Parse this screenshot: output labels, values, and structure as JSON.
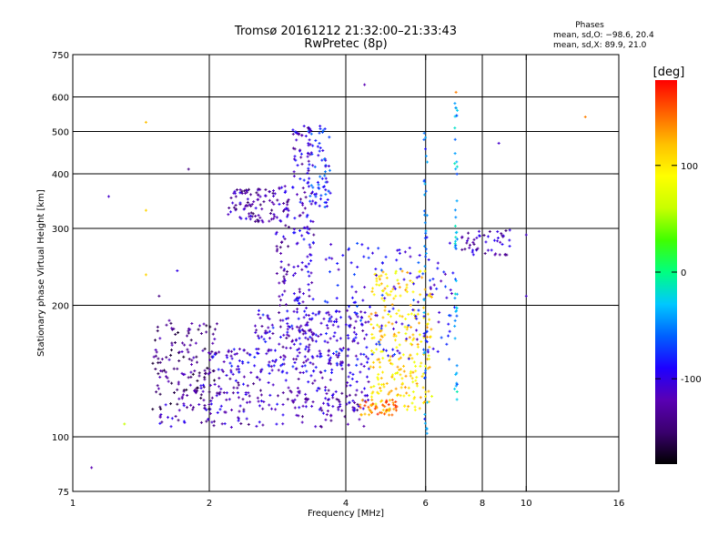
{
  "chart_data": {
    "type": "scatter",
    "title": "Tromsø 20161212 21:32:00–21:33:43",
    "subtitle": "RwPretec (8p)",
    "xlabel": "Frequency [MHz]",
    "ylabel": "Stationary phase Virtual Height [km]",
    "x_scale": "log",
    "y_scale": "log",
    "xlim": [
      1,
      16
    ],
    "ylim": [
      75,
      750
    ],
    "x_ticks": [
      1,
      2,
      4,
      6,
      8,
      10,
      16
    ],
    "y_ticks": [
      75,
      100,
      200,
      300,
      400,
      500,
      600,
      750
    ],
    "x_gridlines": [
      2,
      4,
      6,
      8,
      10
    ],
    "y_gridlines": [
      100,
      200,
      300,
      400,
      500,
      600
    ],
    "grid": true,
    "phases_box": {
      "title": "Phases",
      "line_o": "mean, sd,O: −98.6, 20.4",
      "line_x": "mean, sd,X:  89.9, 21.0"
    },
    "colorbar": {
      "label": "[deg]",
      "range": [
        -180,
        180
      ],
      "ticks": [
        100,
        0,
        -100
      ],
      "colormap": [
        "#000000",
        "#3a006e",
        "#5a00b4",
        "#1e00ff",
        "#0060ff",
        "#00c8ff",
        "#00ff80",
        "#40ff00",
        "#c8ff00",
        "#ffff00",
        "#ffc000",
        "#ff6000",
        "#ff0000"
      ]
    },
    "clusters": [
      {
        "name": "E region trace",
        "fmin": 1.55,
        "fmax": 4.5,
        "h0": 105,
        "h1": 130,
        "phase": -120,
        "n": 140
      },
      {
        "name": "E region trace upper",
        "fmin": 1.7,
        "fmax": 4.5,
        "h0": 115,
        "h1": 140,
        "phase": -115,
        "n": 110
      },
      {
        "name": "Low band dense",
        "fmin": 1.5,
        "fmax": 2.1,
        "h0": 115,
        "h1": 185,
        "phase": -140,
        "n": 130
      },
      {
        "name": "F1 band lower",
        "fmin": 2.0,
        "fmax": 4.5,
        "h0": 140,
        "h1": 160,
        "phase": -105,
        "n": 150
      },
      {
        "name": "F1 band middle",
        "fmin": 2.5,
        "fmax": 4.5,
        "h0": 165,
        "h1": 195,
        "phase": -105,
        "n": 120
      },
      {
        "name": "Vertical column 3.2 MHz",
        "fmin": 3.05,
        "fmax": 3.4,
        "h0": 150,
        "h1": 520,
        "phase": -110,
        "n": 160
      },
      {
        "name": "Vertical column 2.9 MHz",
        "fmin": 2.8,
        "fmax": 3.0,
        "h0": 150,
        "h1": 380,
        "phase": -120,
        "n": 70
      },
      {
        "name": "Upper cluster 2.3 MHz",
        "fmin": 2.2,
        "fmax": 2.8,
        "h0": 310,
        "h1": 370,
        "phase": -125,
        "n": 90
      },
      {
        "name": "Cluster 3.4 MHz top",
        "fmin": 3.3,
        "fmax": 3.7,
        "h0": 330,
        "h1": 520,
        "phase": -80,
        "n": 70
      },
      {
        "name": "Yellow band 5 MHz",
        "fmin": 4.5,
        "fmax": 6.2,
        "h0": 115,
        "h1": 240,
        "phase": 105,
        "n": 260
      },
      {
        "name": "Orange lower band",
        "fmin": 4.3,
        "fmax": 5.2,
        "h0": 112,
        "h1": 122,
        "phase": 140,
        "n": 50
      },
      {
        "name": "Upper right patch",
        "fmin": 7.2,
        "fmax": 9.2,
        "h0": 260,
        "h1": 300,
        "phase": -120,
        "n": 50
      },
      {
        "name": "Scattered mid F",
        "fmin": 3.6,
        "fmax": 7.0,
        "h0": 150,
        "h1": 280,
        "phase": -90,
        "n": 150
      },
      {
        "name": "Column 6 MHz",
        "fmin": 5.95,
        "fmax": 6.05,
        "h0": 95,
        "h1": 520,
        "phase": -60,
        "n": 45
      },
      {
        "name": "Column 7 MHz",
        "fmin": 6.95,
        "fmax": 7.05,
        "h0": 120,
        "h1": 600,
        "phase": -40,
        "n": 50
      }
    ],
    "isolated_points": [
      {
        "f": 1.1,
        "h": 85,
        "phase": -120
      },
      {
        "f": 1.2,
        "h": 355,
        "phase": -110
      },
      {
        "f": 1.45,
        "h": 525,
        "phase": 120
      },
      {
        "f": 1.45,
        "h": 330,
        "phase": 110
      },
      {
        "f": 1.45,
        "h": 235,
        "phase": 110
      },
      {
        "f": 1.3,
        "h": 107,
        "phase": 60
      },
      {
        "f": 1.8,
        "h": 410,
        "phase": -140
      },
      {
        "f": 4.4,
        "h": 640,
        "phase": -120
      },
      {
        "f": 7.0,
        "h": 615,
        "phase": 140
      },
      {
        "f": 8.7,
        "h": 470,
        "phase": -110
      },
      {
        "f": 13.5,
        "h": 540,
        "phase": 140
      },
      {
        "f": 10.0,
        "h": 210,
        "phase": -110
      },
      {
        "f": 10.0,
        "h": 290,
        "phase": -110
      },
      {
        "f": 1.7,
        "h": 240,
        "phase": -100
      },
      {
        "f": 1.55,
        "h": 210,
        "phase": -140
      }
    ]
  }
}
